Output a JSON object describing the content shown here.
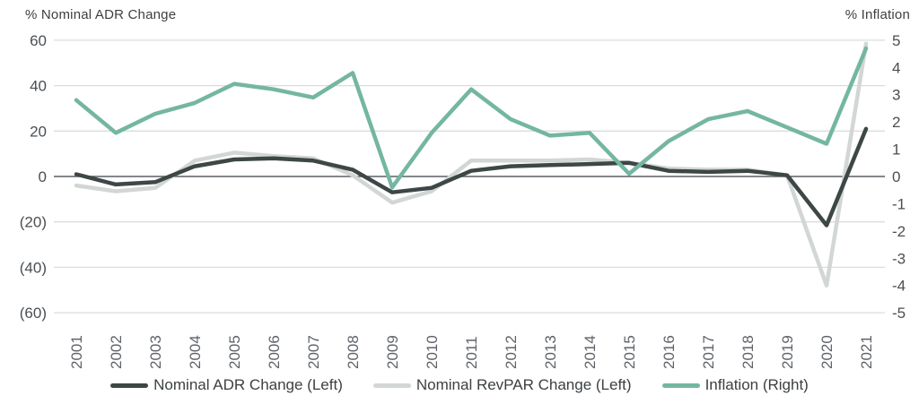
{
  "chart_data": {
    "type": "line",
    "categories": [
      "2001",
      "2002",
      "2003",
      "2004",
      "2005",
      "2006",
      "2007",
      "2008",
      "2009",
      "2010",
      "2011",
      "2012",
      "2013",
      "2014",
      "2015",
      "2016",
      "2017",
      "2018",
      "2019",
      "2020",
      "2021"
    ],
    "series": [
      {
        "name": "Nominal ADR Change (Left)",
        "axis": "left",
        "color": "#3d4745",
        "values": [
          1,
          -3.5,
          -2.5,
          4.5,
          7.5,
          8,
          7,
          3,
          -7,
          -5,
          2.5,
          4.5,
          5,
          5.5,
          6,
          2.5,
          2,
          2.5,
          0.5,
          -21.5,
          21
        ]
      },
      {
        "name": "Nominal RevPAR Change (Left)",
        "axis": "left",
        "color": "#d2d6d5",
        "values": [
          -4,
          -6.5,
          -5,
          7,
          10.5,
          9,
          8,
          0.5,
          -11.5,
          -6.5,
          7,
          7,
          7,
          7.5,
          6,
          3.5,
          3,
          3,
          0.5,
          -48,
          58.5
        ]
      },
      {
        "name": "Inflation (Right)",
        "axis": "right",
        "color": "#74b6a2",
        "values": [
          2.8,
          1.6,
          2.3,
          2.7,
          3.4,
          3.2,
          2.9,
          3.8,
          -0.4,
          1.6,
          3.2,
          2.1,
          1.5,
          1.6,
          0.1,
          1.3,
          2.1,
          2.4,
          1.8,
          1.2,
          4.7
        ]
      }
    ],
    "left_axis": {
      "title": "% Nominal ADR Change",
      "min": -60,
      "max": 60,
      "step": 20,
      "tick_labels": [
        "60",
        "40",
        "20",
        "0",
        "(20)",
        "(40)",
        "(60)"
      ]
    },
    "right_axis": {
      "title": "% Inflation",
      "min": -5,
      "max": 5,
      "step": 1,
      "tick_labels": [
        "5",
        "4",
        "3",
        "2",
        "1",
        "0",
        "-1",
        "-2",
        "-3",
        "-4",
        "-5"
      ]
    },
    "grid": "horizontal",
    "legend_position": "bottom"
  },
  "colors": {
    "gridline": "#dcdcdc",
    "zero_line": "#5a5f63",
    "tick_label": "#4a4f53",
    "year_label": "#5f6368",
    "background": "#ffffff"
  }
}
